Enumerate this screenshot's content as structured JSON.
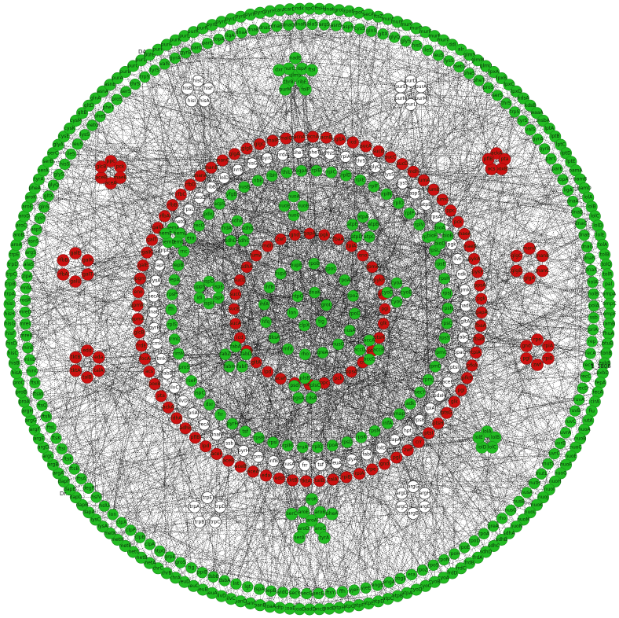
{
  "diagram": {
    "type": "network",
    "layout": "concentric-circles-with-clusters",
    "colors": {
      "green": "#22bb22",
      "red": "#cc1111",
      "white": "#ffffff",
      "edge": "#000000",
      "background": "#ffffff"
    },
    "side_labels": [
      "D4...",
      "1_1806",
      "Dr..."
    ],
    "rings": [
      {
        "name": "outer-green-ring",
        "color": "green",
        "labels": [
          "ispG",
          "ftsH",
          "dnaK",
          "groL",
          "rpoB",
          "rpoC",
          "secA",
          "ftsZ",
          "murA",
          "murB",
          "murC",
          "murD",
          "murE",
          "murF",
          "murG",
          "ddl",
          "alr",
          "glmS",
          "glmM",
          "glmU",
          "lpxA",
          "lpxB",
          "lpxC",
          "lpxD",
          "kdsA",
          "kdsB",
          "waaA",
          "msbA",
          "lptA",
          "lptB",
          "lptC",
          "lptD",
          "lptE",
          "bamA",
          "bamB",
          "bamD",
          "lolA",
          "lolB",
          "lolC",
          "lolD",
          "lolE",
          "tolA",
          "tolB",
          "tolQ",
          "tolR",
          "pal",
          "ompA",
          "ompC",
          "ompF",
          "lamB",
          "fhuA",
          "btuB",
          "tonB",
          "exbB",
          "exbD",
          "fepA",
          "fecA",
          "cirA",
          "fiu",
          "iutA",
          "nuoA",
          "nuoB",
          "nuoC",
          "nuoE",
          "nuoF",
          "nuoG",
          "nuoH",
          "nuoI",
          "nuoJ",
          "nuoK",
          "nuoL",
          "nuoM",
          "nuoN",
          "sdhA",
          "sdhB",
          "sdhC",
          "sdhD",
          "frdA",
          "frdB",
          "frdC",
          "frdD",
          "cyoA",
          "cyoB",
          "cyoC",
          "cyoD",
          "atpA",
          "atpB",
          "atpC",
          "atpD",
          "atpE",
          "atpF",
          "atpG",
          "atpH",
          "nadE",
          "pncB",
          "nadD",
          "coaD",
          "coaE",
          "dfp",
          "coaA",
          "panB",
          "panC",
          "panD",
          "ilvC",
          "ilvD",
          "leuA",
          "leuB",
          "leuC",
          "leuD",
          "thrA",
          "thrB",
          "thrC",
          "metA",
          "metB",
          "metC",
          "metE",
          "metH",
          "metK",
          "lysA",
          "lysC",
          "dapA",
          "dapB",
          "dapD",
          "dapE",
          "dapF",
          "argA",
          "argB",
          "argC",
          "argD",
          "argE",
          "argF",
          "argG",
          "argH",
          "proA",
          "proB",
          "proC",
          "hisA",
          "hisB",
          "hisC",
          "hisD",
          "hisF",
          "hisG",
          "hisH",
          "hisI",
          "trpA",
          "trpB",
          "trpC",
          "trpD",
          "trpE",
          "aroA",
          "aroB",
          "aroC",
          "aroD",
          "aroE",
          "aroK",
          "pheA",
          "tyrA",
          "serA",
          "serB",
          "serC",
          "glyA",
          "cysE",
          "cysK",
          "cysM",
          "gltB",
          "gltD",
          "glnA",
          "asnA",
          "asnB",
          "purA",
          "purB",
          "purC",
          "purD",
          "purE",
          "purF",
          "purH",
          "purK",
          "purL",
          "purM",
          "purN",
          "pyrB",
          "pyrC",
          "pyrD",
          "pyrE",
          "pyrF",
          "pyrG",
          "pyrH",
          "carA",
          "carB",
          "ndk",
          "adk",
          "gmk",
          "cmk",
          "tmk",
          "thyA",
          "dut",
          "nrdA",
          "nrdB",
          "folA",
          "folC",
          "folD",
          "folE",
          "folK",
          "folP",
          "ribA",
          "ribB",
          "ribD",
          "ribE",
          "ribF",
          "thiC",
          "thiE",
          "thiF",
          "thiG",
          "thiL",
          "pdxA",
          "pdxB",
          "pdxH",
          "pdxJ",
          "bioA",
          "bioB",
          "bioD",
          "bioF",
          "hemA",
          "hemB",
          "hemC",
          "hemD",
          "hemE",
          "hemG",
          "hemH",
          "hemL",
          "ispA",
          "ispB",
          "ispD",
          "ispE",
          "ispF",
          "ispH",
          "dxr",
          "dxs",
          "idi",
          "uppS",
          "cdsA",
          "pgsA",
          "psd",
          "pssA",
          "plsB",
          "plsC",
          "fabA",
          "fabB",
          "fabD",
          "fabF",
          "fabG",
          "fabH",
          "fabI",
          "fabZ",
          "accA",
          "accB",
          "accC",
          "accD",
          "acpP",
          "acpS",
          "rpsA",
          "rpsB",
          "rpsC",
          "rpsD",
          "rpsE",
          "rpsF",
          "rpsG",
          "rpsH",
          "rpsI",
          "rpsJ",
          "rpsK",
          "rpsL",
          "rpsM",
          "rplA",
          "rplB",
          "rplC",
          "rplD",
          "rplE",
          "rplF",
          "rplI",
          "rplJ",
          "rplK",
          "rplL",
          "rplM",
          "rplN",
          "rplO",
          "rplP",
          "rplQ",
          "rplR",
          "infA",
          "infB",
          "infC",
          "tsf",
          "tufA",
          "fusA",
          "prfA",
          "prfB",
          "frr",
          "efp"
        ]
      },
      {
        "name": "second-green-ring",
        "color": "green",
        "labels": [
          "alaS",
          "argS",
          "asnS",
          "aspS",
          "cysS",
          "glnS",
          "gltX",
          "glyQ",
          "glyS",
          "hisS",
          "ileS",
          "leuS",
          "lysS",
          "metG",
          "pheS",
          "pheT",
          "proS",
          "serS",
          "thrS",
          "trpS",
          "tyrS",
          "valS",
          "gyrA",
          "gyrB",
          "parC",
          "parE",
          "topA",
          "ligA",
          "dnaA",
          "dnaB",
          "dnaC",
          "dnaE",
          "dnaG",
          "dnaN",
          "dnaX",
          "holA",
          "holB",
          "polA",
          "ssb",
          "priA",
          "rep",
          "recA",
          "recB",
          "recC",
          "recD",
          "ruvA",
          "ruvB",
          "ruvC",
          "uvrA",
          "uvrB",
          "uvrC",
          "mutS",
          "mutL",
          "mutH",
          "nusA",
          "nusB",
          "nusG",
          "rho",
          "greA",
          "rpoA",
          "rpoD",
          "rpoE",
          "rpoH",
          "rpoN",
          "rpoS",
          "rpoZ",
          "era",
          "obgE",
          "engA",
          "engB",
          "yjeE",
          "yjeF",
          "ffh",
          "ftsY",
          "secE",
          "secG",
          "secY",
          "yidC",
          "lepB",
          "lspA",
          "lgt",
          "lnt",
          "dsbA",
          "dsbB",
          "ppiB",
          "tig",
          "groS",
          "grpE",
          "htpG",
          "clpA",
          "clpB",
          "clpP",
          "clpX",
          "lon",
          "hslU",
          "hslV",
          "degP",
          "ftsA",
          "ftsB",
          "ftsE",
          "ftsI",
          "ftsK",
          "ftsL",
          "ftsN",
          "ftsQ",
          "ftsW",
          "ftsX",
          "minC",
          "minD",
          "minE",
          "mreB",
          "mreC",
          "mreD",
          "rodA",
          "mrdA",
          "zipA"
        ]
      },
      {
        "name": "red-ring",
        "color": "red",
        "labels": [
          "acnA",
          "acnB",
          "gltA",
          "icd",
          "sucA",
          "sucB",
          "sucC",
          "sucD",
          "mdh",
          "fumA",
          "fumB",
          "fumC",
          "ppc",
          "pck",
          "maeA",
          "maeB",
          "pykA",
          "pykF",
          "ppsA",
          "pgk",
          "gapA",
          "fbaA",
          "fbaB",
          "tpiA",
          "pfkA",
          "pfkB",
          "pgi",
          "glk",
          "ptsG",
          "ptsH",
          "ptsI",
          "crr",
          "zwf",
          "pgl",
          "gnd",
          "rpe",
          "rpiA",
          "rpiB",
          "talA",
          "talB",
          "tktA",
          "tktB",
          "edd",
          "eda",
          "aceA",
          "aceB",
          "aceE",
          "aceF",
          "lpd",
          "pflB",
          "adhE",
          "ldhA",
          "ackA",
          "pta",
          "poxB",
          "acs",
          "focA",
          "frdE",
          "glcB",
          "gpmA",
          "gpmM",
          "eno",
          "pgm",
          "galE",
          "galK",
          "galT",
          "galU",
          "rfbA",
          "rfbB",
          "rfbC",
          "rfbD",
          "manA",
          "manB",
          "manC",
          "glgA",
          "glgB",
          "glgC",
          "malP",
          "malQ"
        ]
      },
      {
        "name": "white-ring",
        "color": "white",
        "labels": [
          "pheT",
          "PhlS",
          "rpiA",
          "thrS",
          "glyQ",
          "lysS",
          "cysS",
          "aspS",
          "atpB",
          "rpsA",
          "carA",
          "pgk",
          "ilvE",
          "ndk",
          "gmk",
          "nadE",
          "gltA",
          "fabG",
          "ppaC",
          "ptsI",
          "aceE",
          "pdxH",
          "tpiA",
          "rpsB",
          "hpt",
          "dapA",
          "folD",
          "fabI",
          "glyA",
          "leuA",
          "tsf",
          "frr",
          "nusA",
          "infB",
          "rpmE",
          "pyrH",
          "ssb",
          "dnaN",
          "recA",
          "priA",
          "ilvD",
          "ilvC",
          "fabB",
          "tmk",
          "cmk",
          "gyrB",
          "dnaE",
          "secA",
          "lysA",
          "dapF",
          "grpE",
          "glnS",
          "metG",
          "rpsL",
          "deoD",
          "ribB",
          "lolD",
          "uvrB",
          "hisG",
          "pyrG",
          "nrdA"
        ]
      },
      {
        "name": "third-green-ring",
        "color": "green",
        "labels": [
          "rplB",
          "rplC",
          "rplD",
          "rplE",
          "rplF",
          "rplN",
          "rplO",
          "rplP",
          "rplV",
          "rplW",
          "rpsC",
          "rpsE",
          "rpsH",
          "rpsJ",
          "rpsN",
          "rpsQ",
          "rpsS",
          "rpmC",
          "rpmD",
          "rpmJ",
          "secY",
          "adk",
          "map",
          "infA",
          "rpsM",
          "rpsK",
          "rpsD",
          "rpoA",
          "rplQ",
          "truA",
          "rplM",
          "rpsI",
          "rpsB",
          "tsf",
          "pyrH",
          "frr",
          "dxr",
          "ispC",
          "rseP",
          "proS",
          "rimM",
          "trmD",
          "rplS",
          "ffh",
          "rpsP",
          "lepA",
          "lepB",
          "rnc",
          "era",
          "recO",
          "pdxJ",
          "acpS",
          "yfgB",
          "nusB",
          "ribE",
          "ribH",
          "thiL",
          "pgpA",
          "dxs",
          "ispA"
        ]
      },
      {
        "name": "inner-red-ring",
        "color": "red",
        "labels": [
          "gapA",
          "pgk",
          "fbaA",
          "tpiA",
          "eno",
          "gpmA",
          "pykF",
          "pfkA",
          "pgi",
          "glk",
          "ptsH",
          "ptsI",
          "crr",
          "ppsA",
          "pck",
          "ppc",
          "maeB",
          "aceE",
          "aceF",
          "lpd",
          "gltA",
          "acnB",
          "icd",
          "sucA",
          "sucB",
          "sucC",
          "sucD",
          "sdhA",
          "fumA",
          "mdh",
          "zwf",
          "gnd"
        ]
      },
      {
        "name": "inner-green-ring",
        "color": "green",
        "labels": [
          "rpoB",
          "rpoC",
          "rpoA",
          "rpoZ",
          "rpoD",
          "nusA",
          "nusG",
          "greA",
          "rho",
          "mfd",
          "dksA",
          "hfq",
          "ihfA",
          "ihfB",
          "hupA",
          "hupB"
        ]
      },
      {
        "name": "core-green-ring",
        "color": "green",
        "labels": [
          "dnaK",
          "groL",
          "tig",
          "clpX",
          "lon",
          "htpG"
        ]
      }
    ],
    "clusters": [
      {
        "name": "top-green-cluster",
        "color": "green",
        "labels": [
          "glmS",
          "ispA",
          "ribF",
          "thrB",
          "murC",
          "nadE",
          "ftsI",
          "folP",
          "purM",
          "dxr"
        ]
      },
      {
        "name": "top-left-white-cluster",
        "color": "white",
        "labels": [
          "hisC",
          "hisF",
          "hisA",
          "hisI",
          "hisB"
        ]
      },
      {
        "name": "top-right-white-cluster",
        "color": "white",
        "labels": [
          "purD",
          "purA",
          "purM",
          "purL",
          "purN",
          "purE"
        ]
      },
      {
        "name": "left-upper-red-cluster",
        "color": "red",
        "labels": [
          "ppc",
          "pck",
          "maeB",
          "aceA",
          "aceB",
          "glcB"
        ]
      },
      {
        "name": "right-upper-red-cluster",
        "color": "red",
        "labels": [
          "ackA",
          "pta",
          "poxB",
          "acs",
          "pflB"
        ]
      },
      {
        "name": "left-mid-red-cluster",
        "color": "red",
        "labels": [
          "galE",
          "galK",
          "galT",
          "galU",
          "rfbA",
          "rfbB"
        ]
      },
      {
        "name": "right-mid-red-cluster",
        "color": "red",
        "labels": [
          "manA",
          "manB",
          "manC",
          "glgA",
          "glgB",
          "glgC"
        ]
      },
      {
        "name": "left-lower-red-cluster",
        "color": "red",
        "labels": [
          "edd",
          "eda",
          "talA",
          "talB",
          "tktA",
          "tktB"
        ]
      },
      {
        "name": "right-lower-red-cluster",
        "color": "red",
        "labels": [
          "rpe",
          "rpiA",
          "rpiB",
          "zwf",
          "pgl",
          "gnd"
        ]
      },
      {
        "name": "bottom-right-green-cluster",
        "color": "green",
        "labels": [
          "lolA",
          "lolB",
          "lolC",
          "lolD",
          "lolE"
        ]
      },
      {
        "name": "bottom-left-white-cluster",
        "color": "white",
        "labels": [
          "trpE",
          "trpD",
          "trpC",
          "trpB",
          "trpA"
        ]
      },
      {
        "name": "bottom-right-white-cluster",
        "color": "white",
        "labels": [
          "argG",
          "argH",
          "argE",
          "argB",
          "argC",
          "argD"
        ]
      },
      {
        "name": "bottom-green-cluster",
        "color": "green",
        "labels": [
          "aroA",
          "aroB",
          "aroC",
          "aroD",
          "aroE",
          "aroK",
          "pheA",
          "tyrA",
          "serA",
          "serC"
        ]
      },
      {
        "name": "inner-cluster-1",
        "color": "green",
        "labels": [
          "nuoA",
          "nuoB",
          "nuoC",
          "nuoE"
        ]
      },
      {
        "name": "inner-cluster-2",
        "color": "green",
        "labels": [
          "atpA",
          "atpB",
          "atpC",
          "atpD",
          "atpE"
        ]
      },
      {
        "name": "inner-cluster-3",
        "color": "green",
        "labels": [
          "sdhA",
          "sdhB",
          "sdhC",
          "sdhD",
          "frdA"
        ]
      },
      {
        "name": "inner-cluster-4",
        "color": "green",
        "labels": [
          "cyoA",
          "cyoB",
          "cyoC",
          "cyoD"
        ]
      },
      {
        "name": "inner-cluster-5",
        "color": "green",
        "labels": [
          "ispD",
          "ispE",
          "ispF",
          "ispH",
          "idi",
          "uppS"
        ]
      },
      {
        "name": "inner-cluster-6",
        "color": "green",
        "labels": [
          "fabA",
          "fabD",
          "fabF",
          "fabH",
          "fabZ"
        ]
      },
      {
        "name": "inner-cluster-7",
        "color": "green",
        "labels": [
          "accA",
          "accB",
          "accC",
          "accD"
        ]
      },
      {
        "name": "inner-cluster-8",
        "color": "green",
        "labels": [
          "plsB",
          "plsC",
          "cdsA",
          "pgsA",
          "psd"
        ]
      },
      {
        "name": "inner-cluster-9",
        "color": "green",
        "labels": [
          "bioA",
          "bioB",
          "bioD",
          "bioF"
        ]
      },
      {
        "name": "inner-cluster-10",
        "color": "green",
        "labels": [
          "hemA",
          "hemB",
          "hemC",
          "hemD",
          "hemE"
        ]
      }
    ]
  }
}
